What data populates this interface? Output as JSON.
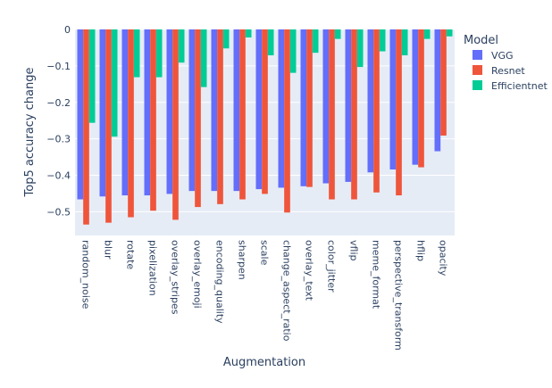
{
  "chart_data": {
    "type": "bar",
    "xlabel": "Augmentation",
    "ylabel": "Top5 accuracy change",
    "ylim": [
      -0.565,
      0
    ],
    "yticks": [
      0,
      -0.1,
      -0.2,
      -0.3,
      -0.4,
      -0.5
    ],
    "ytick_labels": [
      "0",
      "−0.1",
      "−0.2",
      "−0.3",
      "−0.4",
      "−0.5"
    ],
    "grid": true,
    "legend_title": "Model",
    "legend_position": "right",
    "categories": [
      "random_noise",
      "blur",
      "rotate",
      "pixelization",
      "overlay_stripes",
      "overlay_emoji",
      "encoding_quality",
      "sharpen",
      "scale",
      "change_aspect_ratio",
      "overlay_text",
      "color_jitter",
      "vflip",
      "meme_format",
      "perspective_transform",
      "hflip",
      "opacity"
    ],
    "series": [
      {
        "name": "VGG",
        "color": "#636efa",
        "values": [
          -0.466,
          -0.458,
          -0.455,
          -0.455,
          -0.451,
          -0.443,
          -0.443,
          -0.443,
          -0.438,
          -0.434,
          -0.43,
          -0.422,
          -0.418,
          -0.392,
          -0.384,
          -0.371,
          -0.334
        ]
      },
      {
        "name": "Resnet",
        "color": "#ef553b",
        "values": [
          -0.535,
          -0.53,
          -0.515,
          -0.497,
          -0.522,
          -0.487,
          -0.479,
          -0.466,
          -0.451,
          -0.502,
          -0.432,
          -0.466,
          -0.466,
          -0.447,
          -0.455,
          -0.378,
          -0.291
        ]
      },
      {
        "name": "Efficientnet",
        "color": "#00cc96",
        "values": [
          -0.256,
          -0.294,
          -0.131,
          -0.131,
          -0.091,
          -0.158,
          -0.052,
          -0.022,
          -0.071,
          -0.119,
          -0.064,
          -0.026,
          -0.103,
          -0.06,
          -0.071,
          -0.026,
          -0.019
        ]
      }
    ]
  }
}
